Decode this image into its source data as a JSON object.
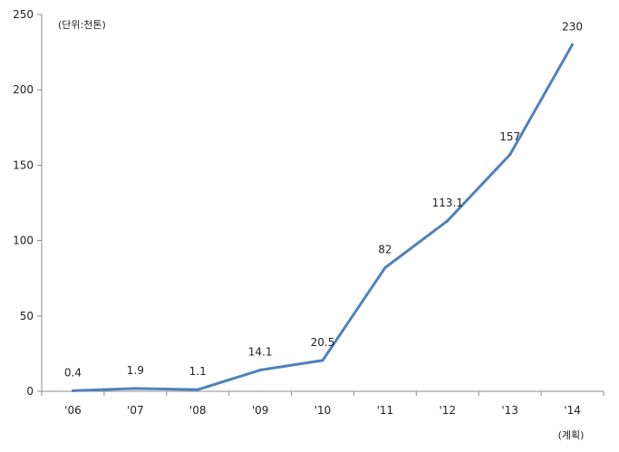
{
  "chart_data": {
    "type": "line",
    "unit_note": "(단위:천톤)",
    "x_note": "(계획)",
    "categories": [
      "'06",
      "'07",
      "'08",
      "'09",
      "'10",
      "'11",
      "'12",
      "'13",
      "'14"
    ],
    "series": [
      {
        "values": [
          0.4,
          1.9,
          1.1,
          14.1,
          20.5,
          82,
          113.1,
          157,
          230
        ],
        "labels": [
          "0.4",
          "1.9",
          "1.1",
          "14.1",
          "20.5",
          "82",
          "113.1",
          "157",
          "230"
        ],
        "color": "#4f81bd"
      }
    ],
    "y_ticks": [
      0,
      50,
      100,
      150,
      200,
      250
    ],
    "ylim": [
      0,
      250
    ],
    "grid": false,
    "axis_color": "#8c8c8c"
  }
}
